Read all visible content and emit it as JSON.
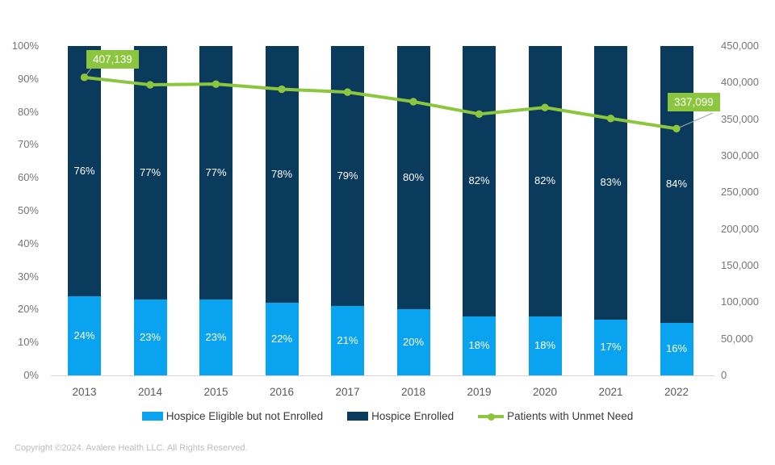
{
  "chart_data": {
    "type": "bar",
    "subtype": "stacked-bar-with-line",
    "categories": [
      "2013",
      "2014",
      "2015",
      "2016",
      "2017",
      "2018",
      "2019",
      "2020",
      "2021",
      "2022"
    ],
    "series": [
      {
        "name": "Hospice Eligible but not Enrolled",
        "type": "bar",
        "axis": "left",
        "unit": "%",
        "color": "#0aa3ef",
        "values": [
          24,
          23,
          23,
          22,
          21,
          20,
          18,
          18,
          17,
          16
        ]
      },
      {
        "name": "Hospice Enrolled",
        "type": "bar",
        "axis": "left",
        "unit": "%",
        "color": "#0a3a5c",
        "values": [
          76,
          77,
          77,
          78,
          79,
          80,
          82,
          82,
          83,
          84
        ]
      },
      {
        "name": "Patients with Unmet Need",
        "type": "line",
        "axis": "right",
        "unit": "patients",
        "color": "#8cc63f",
        "values": [
          407139,
          397000,
          398000,
          391000,
          387000,
          374000,
          357000,
          366000,
          351000,
          337099
        ]
      }
    ],
    "point_labels": [
      {
        "series": "Patients with Unmet Need",
        "index": 0,
        "text": "407,139"
      },
      {
        "series": "Patients with Unmet Need",
        "index": 9,
        "text": "337,099"
      }
    ],
    "left_axis": {
      "min": 0,
      "max": 100,
      "ticks": [
        "0%",
        "10%",
        "20%",
        "30%",
        "40%",
        "50%",
        "60%",
        "70%",
        "80%",
        "90%",
        "100%"
      ]
    },
    "right_axis": {
      "min": 0,
      "max": 450000,
      "ticks": [
        "0",
        "50,000",
        "100,000",
        "150,000",
        "200,000",
        "250,000",
        "300,000",
        "350,000",
        "400,000",
        "450,000"
      ]
    },
    "legend": [
      {
        "label": "Hospice Eligible but not Enrolled",
        "marker": "square"
      },
      {
        "label": "Hospice Enrolled",
        "marker": "square"
      },
      {
        "label": "Patients with Unmet Need",
        "marker": "line-dot"
      }
    ],
    "grid": false,
    "legend_position": "bottom",
    "colors": {
      "leader_line": "#a6a6a6",
      "axis_line": "#d6d6d6"
    }
  },
  "footer": {
    "copyright": "Copyright ©2024. Avalere Health LLC. All Rights Reserved."
  }
}
